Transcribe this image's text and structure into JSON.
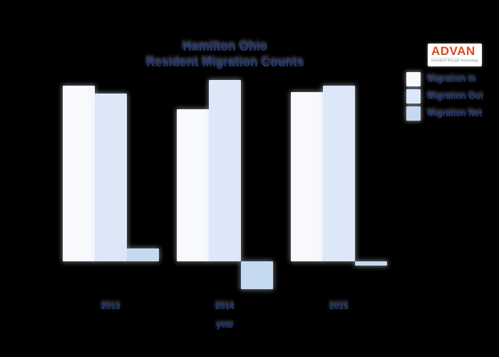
{
  "logo": {
    "brand": "ADVAN",
    "tagline": "Research through Technology"
  },
  "colors": {
    "background": "#000000",
    "text_navy": "#21387e",
    "logo_orange": "#e0461d",
    "tagline_gray": "#8a8a8a",
    "migration_in_bar": "#f7f9fd",
    "migration_out_bar": "#dce7f7",
    "migration_net_bar": "#c5daf0"
  },
  "chart_data": {
    "type": "bar",
    "title": "Hamilton Ohio Resident Migration Counts",
    "title_line1": "Hamilton Ohio",
    "title_line2": "Resident Migration Counts",
    "xlabel": "year",
    "ylabel": "",
    "y_axis_note": "no y-axis ticks or gridlines visible; values are relative units estimated from bar heights (1 unit = 1 px)",
    "legend_position": "upper right",
    "grid": false,
    "categories": [
      "2013",
      "2014",
      "2015"
    ],
    "series": [
      {
        "name": "Migration In",
        "color": "#f7f9fd",
        "values": [
          246,
          213,
          237
        ]
      },
      {
        "name": "Migration Out",
        "color": "#dce7f7",
        "values": [
          235,
          254,
          246
        ]
      },
      {
        "name": "Migration Net",
        "color": "#c5daf0",
        "values": [
          18,
          -39,
          -6
        ]
      }
    ]
  }
}
